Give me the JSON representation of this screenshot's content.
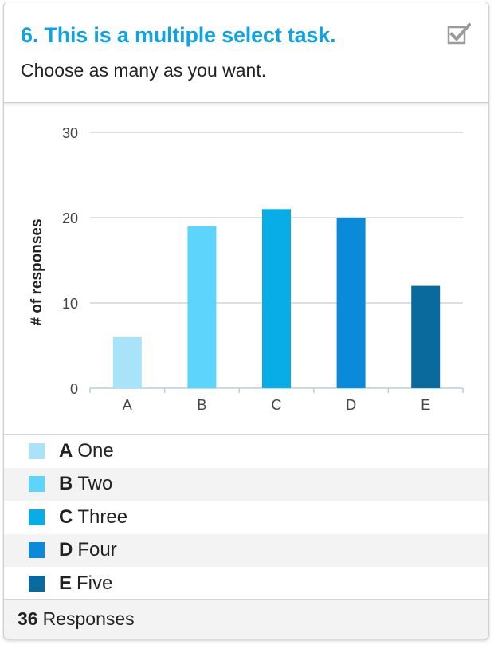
{
  "header": {
    "title": "6. This is a multiple select task.",
    "subtitle": "Choose as many as you want.",
    "icon": "checked-checkbox-icon"
  },
  "chart_data": {
    "type": "bar",
    "categories": [
      "A",
      "B",
      "C",
      "D",
      "E"
    ],
    "values": [
      6,
      19,
      21,
      20,
      12
    ],
    "ylabel": "# of responses",
    "xlabel": "",
    "ylim": [
      0,
      30
    ],
    "yticks": [
      0,
      10,
      20,
      30
    ],
    "grid": true,
    "colors": [
      "#a8e3f9",
      "#5dd4fb",
      "#08ade8",
      "#0a8ad8",
      "#0a6a9e"
    ]
  },
  "legend": {
    "items": [
      {
        "letter": "A",
        "label": "One",
        "color": "#a8e3f9"
      },
      {
        "letter": "B",
        "label": "Two",
        "color": "#5dd4fb"
      },
      {
        "letter": "C",
        "label": "Three",
        "color": "#08ade8"
      },
      {
        "letter": "D",
        "label": "Four",
        "color": "#0a8ad8"
      },
      {
        "letter": "E",
        "label": "Five",
        "color": "#0a6a9e"
      }
    ]
  },
  "footer": {
    "count": "36",
    "label": "Responses"
  }
}
